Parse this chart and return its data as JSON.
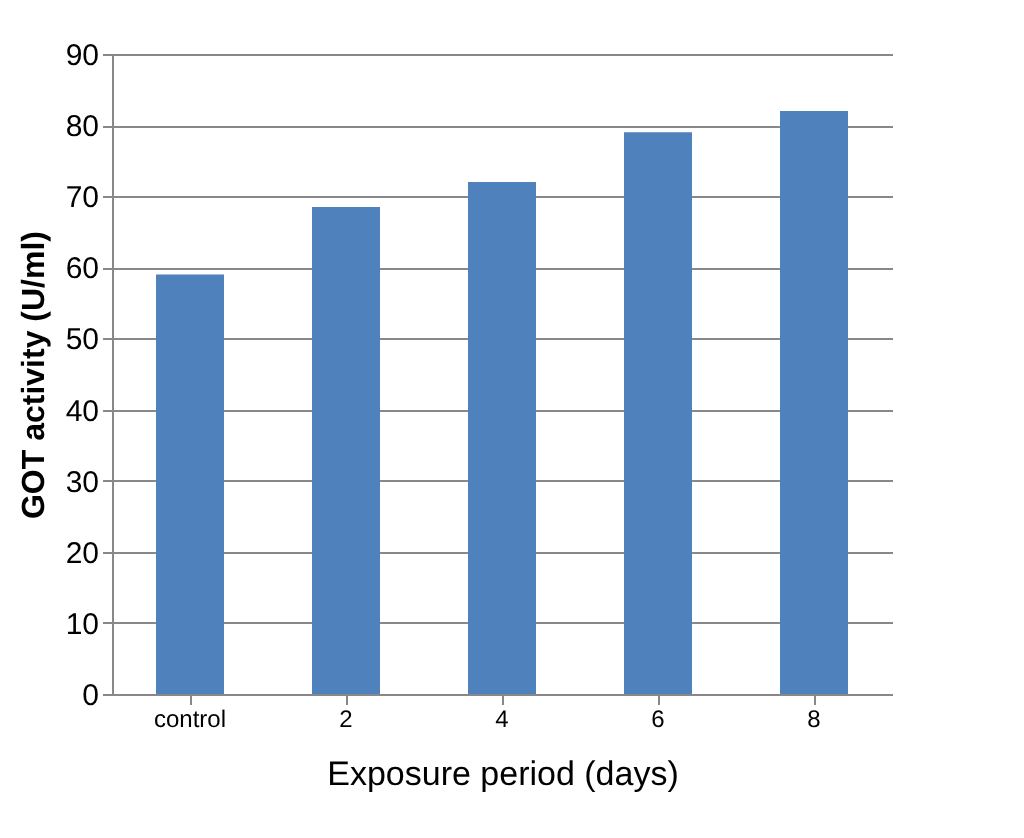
{
  "chart_data": {
    "type": "bar",
    "xlabel": "Exposure period (days)",
    "ylabel": "GOT activity (U/ml)",
    "categories": [
      "control",
      "2",
      "4",
      "6",
      "8"
    ],
    "values": [
      59,
      68.5,
      72,
      79,
      82
    ],
    "color": "#4f81bd",
    "ylim": [
      0,
      90
    ],
    "yticks": [
      0,
      10,
      20,
      30,
      40,
      50,
      60,
      70,
      80,
      90
    ],
    "grid": "y"
  }
}
